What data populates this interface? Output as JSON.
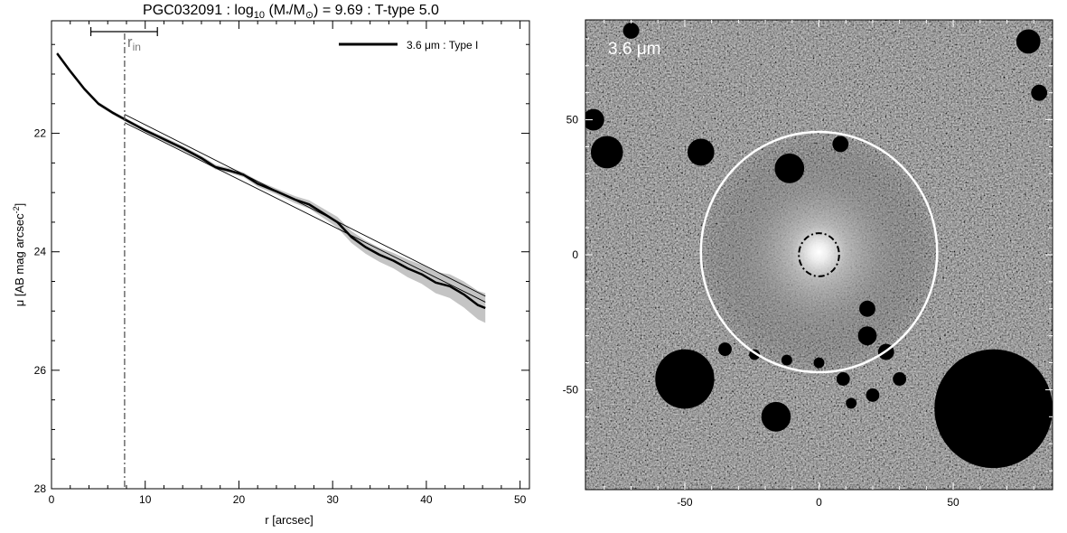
{
  "chart_data": [
    {
      "type": "line",
      "title": {
        "prefix": "PGC032091 : log",
        "sub": "10",
        "mid1": " (M",
        "star": "*",
        "mid2": "/M",
        "sun": "⊙",
        "suffix": ") = 9.69 : T-type 5.0"
      },
      "xlabel": "r [arcsec]",
      "ylabel": "μ [AB mag arcsec",
      "ylabel_sup": "-2",
      "ylabel_end": "]",
      "xlim": [
        0,
        51
      ],
      "ylim": [
        28,
        20.1
      ],
      "y_inverted": true,
      "x_ticks": [
        0,
        10,
        20,
        30,
        40,
        50
      ],
      "x_tick_labels": [
        "0",
        "10",
        "20",
        "30",
        "40",
        "50"
      ],
      "y_ticks": [
        22,
        24,
        26,
        28
      ],
      "y_tick_labels": [
        "22",
        "24",
        "26",
        "28"
      ],
      "legend": {
        "position": "top-right",
        "label": "3.6 μm : Type I"
      },
      "r_in": {
        "label": "r",
        "sub": "in",
        "x": 7.8,
        "range": [
          4.2,
          11.3
        ]
      },
      "series": [
        {
          "name": "3.6 μm : Type I",
          "x": [
            0.6,
            2,
            3.5,
            5,
            6.5,
            8,
            10,
            12,
            14,
            16,
            17.5,
            19,
            20.5,
            22,
            24,
            26,
            27.5,
            29,
            30.5,
            32,
            33.5,
            35,
            36.5,
            38,
            39.5,
            41,
            42.5,
            44,
            45.5,
            46.3
          ],
          "y": [
            20.65,
            20.95,
            21.25,
            21.5,
            21.65,
            21.78,
            21.95,
            22.1,
            22.25,
            22.42,
            22.57,
            22.63,
            22.7,
            22.85,
            22.98,
            23.12,
            23.2,
            23.35,
            23.5,
            23.75,
            23.92,
            24.05,
            24.15,
            24.28,
            24.38,
            24.52,
            24.58,
            24.72,
            24.9,
            24.95
          ],
          "err_upper": [
            20.62,
            20.92,
            21.22,
            21.47,
            21.62,
            21.75,
            21.92,
            22.06,
            22.21,
            22.38,
            22.53,
            22.59,
            22.66,
            22.8,
            22.93,
            23.06,
            23.13,
            23.27,
            23.41,
            23.65,
            23.81,
            23.93,
            24.02,
            24.13,
            24.22,
            24.34,
            24.38,
            24.5,
            24.66,
            24.7
          ],
          "err_lower": [
            20.68,
            20.98,
            21.28,
            21.53,
            21.68,
            21.81,
            21.98,
            22.14,
            22.29,
            22.46,
            22.61,
            22.67,
            22.74,
            22.9,
            23.03,
            23.18,
            23.27,
            23.43,
            23.59,
            23.85,
            24.03,
            24.17,
            24.28,
            24.43,
            24.54,
            24.7,
            24.78,
            24.94,
            25.14,
            25.2
          ]
        },
        {
          "x": [
            7.8,
            46.3
          ],
          "y": [
            21.68,
            24.75
          ]
        },
        {
          "x": [
            7.8,
            46.3
          ],
          "y": [
            21.82,
            24.85
          ]
        }
      ]
    },
    {
      "type": "heatmap",
      "annotation": "3.6 μm",
      "xlim": [
        -87,
        87
      ],
      "ylim": [
        -87,
        87
      ],
      "x_ticks": [
        -50,
        0,
        50
      ],
      "x_tick_labels": [
        "-50",
        "0",
        "50"
      ],
      "y_ticks": [
        -50,
        0,
        50
      ],
      "y_tick_labels": [
        "-50",
        "0",
        "50"
      ],
      "outer_ellipse": {
        "cx": 0,
        "cy": 1,
        "rx": 44,
        "ry": 44.5
      },
      "inner_ellipse": {
        "cx": 0,
        "cy": 0,
        "rx": 7.5,
        "ry": 8
      },
      "masks": [
        {
          "x": -79,
          "y": 38,
          "r": 6
        },
        {
          "x": -44,
          "y": 38,
          "r": 5
        },
        {
          "x": -11,
          "y": 32,
          "r": 5.5
        },
        {
          "x": 8,
          "y": 41,
          "r": 3
        },
        {
          "x": 18,
          "y": -20,
          "r": 3
        },
        {
          "x": 18,
          "y": -30,
          "r": 3.5
        },
        {
          "x": 25,
          "y": -36,
          "r": 3
        },
        {
          "x": 30,
          "y": -46,
          "r": 2.5
        },
        {
          "x": 9,
          "y": -46,
          "r": 2.5
        },
        {
          "x": 20,
          "y": -52,
          "r": 2.5
        },
        {
          "x": -50,
          "y": -46,
          "r": 11
        },
        {
          "x": -35,
          "y": -35,
          "r": 2.5
        },
        {
          "x": -24,
          "y": -37,
          "r": 2
        },
        {
          "x": -12,
          "y": -39,
          "r": 2
        },
        {
          "x": 0,
          "y": -40,
          "r": 2
        },
        {
          "x": -16,
          "y": -60,
          "r": 5.5
        },
        {
          "x": 12,
          "y": -55,
          "r": 2
        },
        {
          "x": 65,
          "y": -57,
          "r": 22
        },
        {
          "x": 78,
          "y": 79,
          "r": 4.5
        },
        {
          "x": -84,
          "y": 50,
          "r": 4
        },
        {
          "x": 82,
          "y": 60,
          "r": 3
        },
        {
          "x": -70,
          "y": 83,
          "r": 3
        }
      ]
    }
  ]
}
